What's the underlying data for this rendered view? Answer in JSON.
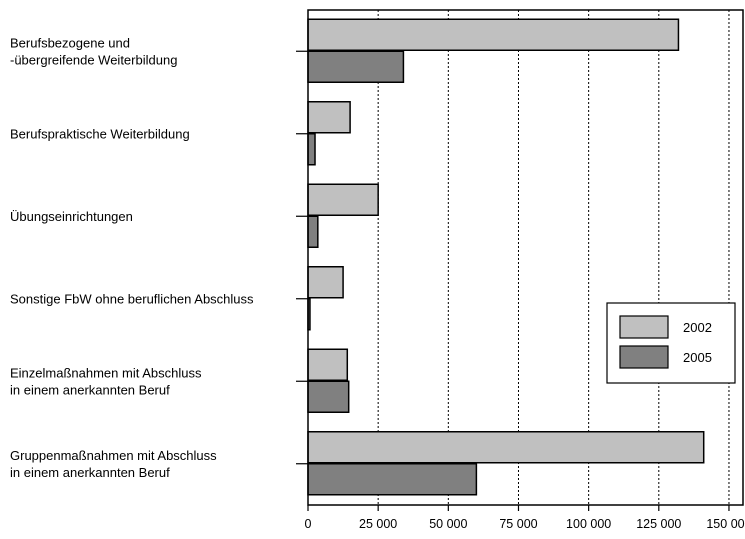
{
  "chart_data": {
    "type": "bar",
    "orientation": "horizontal",
    "categories": [
      [
        "Berufsbezogene und",
        "-übergreifende Weiterbildung"
      ],
      [
        "Berufspraktische Weiterbildung"
      ],
      [
        "Übungseinrichtungen"
      ],
      [
        "Sonstige FbW ohne beruflichen Abschluss"
      ],
      [
        "Einzelmaßnahmen mit Abschluss",
        "in einem anerkannten Beruf"
      ],
      [
        "Gruppenmaßnahmen mit Abschluss",
        "in einem anerkannten Beruf"
      ]
    ],
    "series": [
      {
        "name": "2002",
        "color": "#c0c0c0",
        "values": [
          132000,
          15000,
          25000,
          12500,
          14000,
          141000
        ]
      },
      {
        "name": "2005",
        "color": "#808080",
        "values": [
          34000,
          2500,
          3500,
          700,
          14500,
          60000
        ]
      }
    ],
    "xlim": [
      0,
      155000
    ],
    "xticks": [
      0,
      25000,
      50000,
      75000,
      100000,
      125000,
      150000
    ],
    "xtick_labels": [
      "0",
      "25 000",
      "50 000",
      "75 000",
      "100 000",
      "125 000",
      "150 000"
    ],
    "grid": "vertical-dotted",
    "legend": {
      "position": "right",
      "entries": [
        "2002",
        "2005"
      ]
    },
    "title": "",
    "xlabel": "",
    "ylabel": ""
  }
}
